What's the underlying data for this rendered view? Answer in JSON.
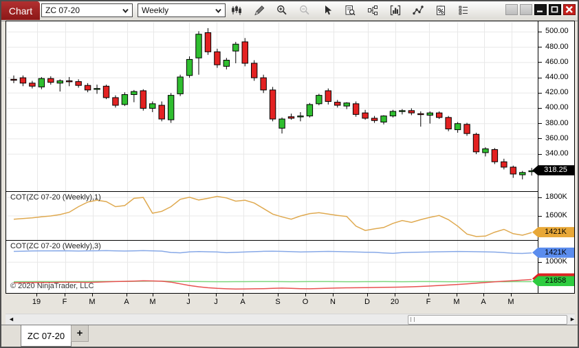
{
  "window": {
    "app_tab": "Chart"
  },
  "toolbar": {
    "instrument": "ZC 07-20",
    "interval": "Weekly",
    "icons": [
      "chart-style-icon",
      "draw-icon",
      "zoom-in-icon",
      "zoom-out-icon",
      "pointer-icon",
      "chart-trader-icon",
      "data-series-icon",
      "indicators-icon",
      "strategies-icon",
      "properties-icon",
      "list-icon"
    ]
  },
  "window_controls": {
    "labels": [
      "blank",
      "blank",
      "minimize",
      "restore",
      "close"
    ]
  },
  "panels": {
    "cot1_label": "COT(ZC 07-20 (Weekly),1)",
    "cot3_label": "COT(ZC 07-20 (Weekly),3)",
    "copyright": "© 2020 NinjaTrader, LLC"
  },
  "badges": {
    "last_price": "318.25",
    "cot1_last": "1421K",
    "cot3_blue_last": "1421K",
    "cot3_green_last": "21858"
  },
  "bottom": {
    "tab_label": "ZC 07-20",
    "add_tab_label": "+"
  },
  "colors": {
    "candle_up": "#2fbe2f",
    "candle_down": "#e32222",
    "candle_stroke": "#000000",
    "cot1_line": "#dfa94f",
    "cot3_blue": "#86a8e7",
    "cot3_green": "#7cd67c",
    "cot3_red": "#e85050",
    "badge_orange": "#e8a838",
    "badge_blue": "#5b8dee",
    "badge_green": "#2ecc40",
    "badge_red": "#dd2222",
    "grid": "#e8e8e8",
    "chart_tab_red": "#9e1f1f"
  },
  "chart_data": {
    "x_axis": {
      "labels": [
        "19",
        "F",
        "M",
        "A",
        "M",
        "J",
        "J",
        "A",
        "S",
        "O",
        "N",
        "D",
        "20",
        "F",
        "M",
        "A",
        "M"
      ],
      "positions": [
        44,
        85,
        125,
        175,
        213,
        265,
        305,
        344,
        395,
        435,
        475,
        525,
        565,
        614,
        655,
        694,
        734
      ]
    },
    "panels": [
      {
        "type": "candlestick",
        "name": "ZC 07-20 Weekly",
        "ylim": [
          291.5,
          513
        ],
        "price_ticks": [
          {
            "label": "500.00",
            "value": 500
          },
          {
            "label": "480.00",
            "value": 480
          },
          {
            "label": "460.00",
            "value": 460
          },
          {
            "label": "440.00",
            "value": 440
          },
          {
            "label": "420.00",
            "value": 420
          },
          {
            "label": "400.00",
            "value": 400
          },
          {
            "label": "380.00",
            "value": 380
          },
          {
            "label": "360.00",
            "value": 360
          },
          {
            "label": "340.00",
            "value": 340
          }
        ],
        "last_price": 318.25,
        "ohlc": [
          [
            438,
            443,
            433,
            437
          ],
          [
            440,
            443,
            429,
            433
          ],
          [
            433,
            436,
            426,
            429
          ],
          [
            428,
            441,
            425,
            439
          ],
          [
            439,
            442,
            431,
            434
          ],
          [
            433,
            438,
            422,
            436
          ],
          [
            436,
            441,
            429,
            435
          ],
          [
            435,
            438,
            427,
            430
          ],
          [
            430,
            433,
            421,
            424
          ],
          [
            426,
            431,
            419,
            426
          ],
          [
            429,
            431,
            412,
            414
          ],
          [
            414,
            417,
            401,
            404
          ],
          [
            405,
            421,
            403,
            418
          ],
          [
            418,
            424,
            408,
            422
          ],
          [
            423,
            425,
            397,
            400
          ],
          [
            400,
            409,
            395,
            406
          ],
          [
            404,
            409,
            383,
            386
          ],
          [
            385,
            420,
            381,
            417
          ],
          [
            419,
            444,
            416,
            441
          ],
          [
            443,
            468,
            440,
            464
          ],
          [
            466,
            501,
            444,
            497
          ],
          [
            499,
            505,
            470,
            474
          ],
          [
            474,
            478,
            453,
            457
          ],
          [
            455,
            466,
            451,
            463
          ],
          [
            475,
            487,
            459,
            484
          ],
          [
            487,
            492,
            455,
            459
          ],
          [
            459,
            463,
            436,
            440
          ],
          [
            440,
            444,
            420,
            424
          ],
          [
            424,
            428,
            383,
            386
          ],
          [
            374,
            388,
            367,
            386
          ],
          [
            389,
            393,
            385,
            387
          ],
          [
            389,
            395,
            383,
            390
          ],
          [
            390,
            407,
            388,
            405
          ],
          [
            406,
            419,
            404,
            417
          ],
          [
            423,
            426,
            405,
            409
          ],
          [
            408,
            411,
            401,
            404
          ],
          [
            403,
            408,
            399,
            407
          ],
          [
            406,
            409,
            389,
            392
          ],
          [
            394,
            398,
            385,
            387
          ],
          [
            387,
            390,
            381,
            384
          ],
          [
            382,
            391,
            379,
            390
          ],
          [
            390,
            398,
            388,
            396
          ],
          [
            396,
            399,
            392,
            397
          ],
          [
            397,
            400,
            391,
            394
          ],
          [
            393,
            396,
            376,
            392
          ],
          [
            391,
            396,
            380,
            394
          ],
          [
            394,
            396,
            386,
            388
          ],
          [
            388,
            390,
            370,
            373
          ],
          [
            372,
            382,
            368,
            380
          ],
          [
            379,
            381,
            364,
            367
          ],
          [
            366,
            368,
            340,
            343
          ],
          [
            342,
            349,
            337,
            347
          ],
          [
            346,
            348,
            327,
            330
          ],
          [
            330,
            334,
            320,
            323
          ],
          [
            323,
            325,
            309,
            314
          ],
          [
            313,
            318,
            307,
            316
          ],
          [
            317,
            322,
            312,
            318.25
          ]
        ]
      },
      {
        "type": "line",
        "name": "COT(ZC 07-20 (Weekly),1)",
        "range": [
          1340,
          1860
        ],
        "ticks": [
          {
            "label": "1800K",
            "value": 1800
          },
          {
            "label": "1600K",
            "value": 1600
          }
        ],
        "last_label": "1421K",
        "values": [
          1565,
          1572,
          1580,
          1590,
          1600,
          1615,
          1640,
          1700,
          1750,
          1770,
          1755,
          1700,
          1712,
          1790,
          1800,
          1630,
          1650,
          1700,
          1780,
          1802,
          1772,
          1790,
          1812,
          1795,
          1760,
          1770,
          1740,
          1680,
          1620,
          1590,
          1565,
          1600,
          1625,
          1636,
          1620,
          1605,
          1595,
          1490,
          1443,
          1460,
          1475,
          1520,
          1550,
          1530,
          1560,
          1585,
          1605,
          1560,
          1490,
          1405,
          1378,
          1382,
          1425,
          1455,
          1408,
          1392,
          1421
        ]
      },
      {
        "type": "line",
        "name": "COT(ZC 07-20 (Weekly),3)",
        "ticks": [
          {
            "label": "1000K",
            "value": 1000
          }
        ],
        "series": [
          {
            "name": "cot3-blue",
            "range": [
              -356,
              1970
            ],
            "last_label": "1421K",
            "values": [
              1490,
              1500,
              1508,
              1512,
              1515,
              1518,
              1512,
              1505,
              1510,
              1518,
              1522,
              1512,
              1505,
              1515,
              1522,
              1510,
              1502,
              1440,
              1425,
              1465,
              1482,
              1472,
              1462,
              1430,
              1445,
              1462,
              1478,
              1492,
              1500,
              1490,
              1478,
              1462,
              1470,
              1480,
              1488,
              1480,
              1470,
              1462,
              1452,
              1445,
              1420,
              1398,
              1432,
              1445,
              1455,
              1462,
              1470,
              1478,
              1486,
              1480,
              1474,
              1465,
              1458,
              1432,
              1402,
              1395,
              1421
            ]
          },
          {
            "name": "cot3-green",
            "range": [
              -60000,
              335000
            ],
            "last_label": "21858",
            "values": [
              21000,
              21400,
              21800,
              22000,
              22400,
              22000,
              21600,
              22000,
              22400,
              22800,
              23000,
              23400,
              23800,
              24400,
              25000,
              25400,
              24800,
              24000,
              23200,
              22600,
              22000,
              21600,
              21200,
              21000,
              21400,
              21800,
              22000,
              22400,
              22000,
              21600,
              21200,
              21600,
              22000,
              22400,
              22000,
              21600,
              21200,
              21000,
              21400,
              21800,
              22000,
              21600,
              21200,
              21600,
              22000,
              22000,
              21600,
              21200,
              21000,
              21400,
              21800,
              22000,
              21600,
              21200,
              21400,
              21600,
              21858
            ]
          },
          {
            "name": "cot3-red",
            "range": [
              -60000,
              335000
            ],
            "values": [
              12000,
              14000,
              15000,
              16000,
              15000,
              17000,
              18000,
              17000,
              16000,
              18000,
              20000,
              22000,
              24000,
              26000,
              28000,
              27000,
              25000,
              18000,
              5000,
              -8000,
              -18000,
              -25000,
              -30000,
              -33000,
              -35000,
              -34000,
              -33000,
              -32000,
              -30000,
              -28000,
              -30000,
              -32000,
              -33000,
              -31000,
              -29000,
              -27000,
              -26000,
              -25000,
              -24000,
              -23000,
              -22000,
              -21000,
              -20000,
              -18000,
              -15000,
              -12000,
              -8000,
              -4000,
              0,
              5000,
              10000,
              15000,
              20000,
              25000,
              29000,
              33000,
              38000
            ]
          }
        ]
      }
    ]
  }
}
